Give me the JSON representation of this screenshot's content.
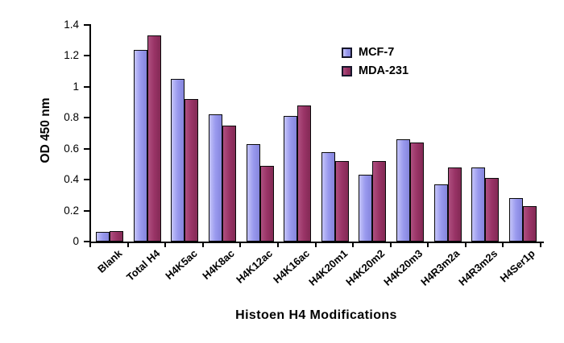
{
  "chart_data": {
    "type": "bar",
    "title": "",
    "xlabel": "Histoen H4 Modifications",
    "ylabel": "OD 450 nm",
    "ylim": [
      0,
      1.4
    ],
    "grid": false,
    "legend_position": "top-right",
    "yticks": [
      "0",
      "0.2",
      "0.4",
      "0.6",
      "0.8",
      "1",
      "1.2",
      "1.4"
    ],
    "categories": [
      "Blank",
      "Total H4",
      "H4K5ac",
      "H4K8ac",
      "H4K12ac",
      "H4K16ac",
      "H4K20m1",
      "H4K20m2",
      "H4K20m3",
      "H4R3m2a",
      "H4R3m2s",
      "H4Ser1p"
    ],
    "series": [
      {
        "name": "MCF-7",
        "color": "#9999ee",
        "color_light": "#c4c4f9",
        "color_dark": "#8585dd",
        "values": [
          0.06,
          1.24,
          1.05,
          0.82,
          0.63,
          0.81,
          0.58,
          0.43,
          0.66,
          0.37,
          0.48,
          0.28
        ]
      },
      {
        "name": "MDA-231",
        "color": "#993366",
        "color_light": "#ae5080",
        "color_dark": "#832a55",
        "values": [
          0.07,
          1.33,
          0.92,
          0.75,
          0.49,
          0.88,
          0.52,
          0.52,
          0.64,
          0.48,
          0.41,
          0.23
        ]
      }
    ]
  }
}
